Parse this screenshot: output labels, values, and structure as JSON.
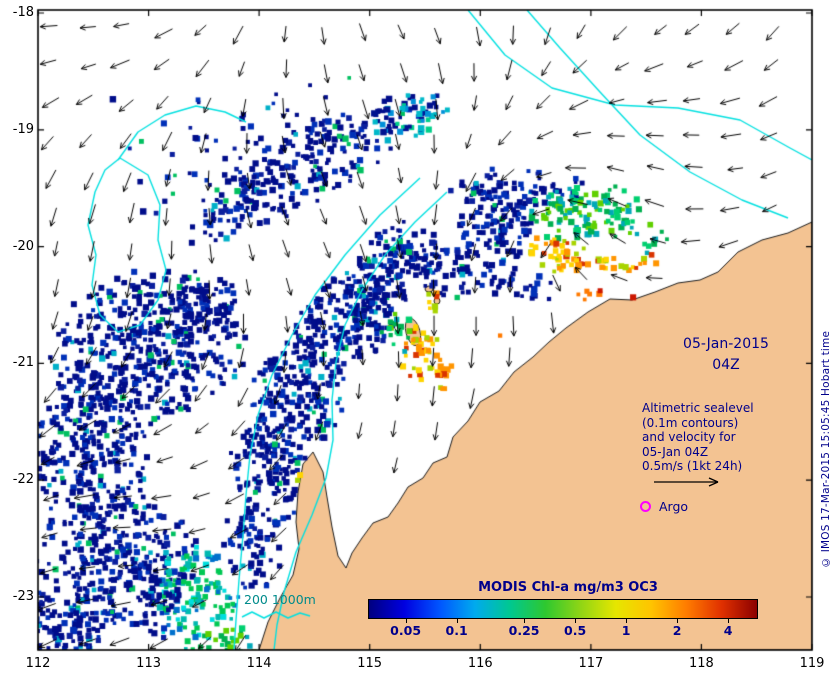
{
  "colors": {
    "land": "#f3c392",
    "ocean": "#ffffff",
    "coastline": "#1a1a1a",
    "contour_cyan": "#00e0e0",
    "navy_text": "#00008b",
    "teal_text": "#008b8b",
    "argo_magenta": "#ff00ff",
    "frame": "#000000",
    "arrow": "#000000"
  },
  "axes": {
    "x_ticks": [
      "112",
      "113",
      "114",
      "115",
      "116",
      "117",
      "118",
      "119"
    ],
    "y_ticks": [
      "-18",
      "-19",
      "-20",
      "-21",
      "-22",
      "-23"
    ]
  },
  "annotations": {
    "date_line1": "05-Jan-2015",
    "date_line2": "04Z",
    "altimetric_lines": [
      "Altimetric sealevel",
      "(0.1m contours)",
      "and velocity for",
      "05-Jan 04Z",
      "0.5m/s (1kt 24h)"
    ],
    "argo_label": "Argo",
    "depth_legend": "200  1000m",
    "copyright": "© IMOS 17-Mar-2015 15:05:45 Hobart time"
  },
  "icons": {
    "argo_marker": "magenta-circle-outline",
    "velocity_scale_arrow": "right-arrow",
    "velocity_vectors": "black-flow-arrows"
  },
  "colorbar": {
    "title": "MODIS Chl-a mg/m3 OC3",
    "tick_labels": [
      "0.05",
      "0.1",
      "0.25",
      "0.5",
      "1",
      "2",
      "4"
    ],
    "tick_values": [
      0.05,
      0.1,
      0.25,
      0.5,
      1,
      2,
      4
    ],
    "scale": "log",
    "min": 0.03,
    "max": 6,
    "gradient": [
      "#000080",
      "#0000e0",
      "#0055ff",
      "#00aaee",
      "#00c890",
      "#2ec830",
      "#90d515",
      "#e6e600",
      "#ffc400",
      "#ff7c00",
      "#e03000",
      "#8b0000"
    ]
  }
}
